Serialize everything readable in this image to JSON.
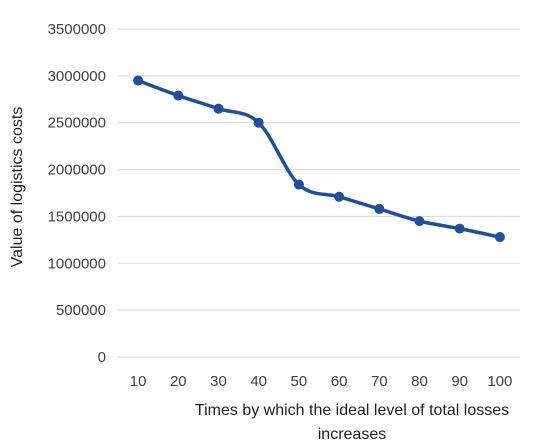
{
  "chart_data": {
    "type": "line",
    "title": "",
    "xlabel_line1": "Times by which the ideal level of total losses",
    "xlabel_line2": "increases",
    "ylabel": "Value of logistics costs",
    "categories": [
      "10",
      "20",
      "30",
      "40",
      "50",
      "60",
      "70",
      "80",
      "90",
      "100"
    ],
    "series": [
      {
        "values": [
          2950000,
          2790000,
          2650000,
          2500000,
          1840000,
          1710000,
          1580000,
          1450000,
          1370000,
          1280000
        ]
      }
    ],
    "ylim": [
      0,
      3500000
    ],
    "yticks": [
      "0",
      "500000",
      "1000000",
      "1500000",
      "2000000",
      "2500000",
      "3000000",
      "3500000"
    ],
    "ytick_values": [
      0,
      500000,
      1000000,
      1500000,
      2000000,
      2500000,
      3000000,
      3500000
    ],
    "grid": true,
    "legend": "none",
    "colors": {
      "line": "#1f4e9a",
      "grid": "#d9d9d9",
      "text": "#404040"
    }
  }
}
